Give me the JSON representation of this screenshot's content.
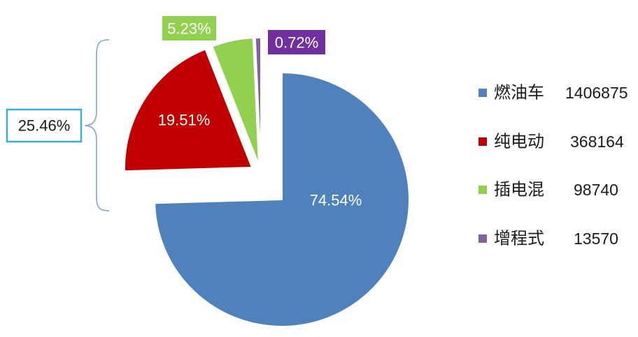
{
  "chart_data": {
    "type": "pie",
    "categories": [
      "燃油车",
      "纯电动",
      "插电混",
      "增程式"
    ],
    "values": [
      1406875,
      368164,
      98740,
      13570
    ],
    "data_labels": [
      "74.54%",
      "19.51%",
      "5.23%",
      "0.72%"
    ],
    "colors": [
      "#4f81bd",
      "#c00000",
      "#92d050",
      "#8064a2"
    ],
    "label_box_colors": [
      null,
      null,
      "#92d050",
      "#7030a0"
    ],
    "exploded": [
      false,
      true,
      true,
      true
    ],
    "legend": "right",
    "annotation": {
      "text": "25.46%",
      "brace_color": "#7ea6d2",
      "box_border_color": "#3aaed8"
    }
  }
}
